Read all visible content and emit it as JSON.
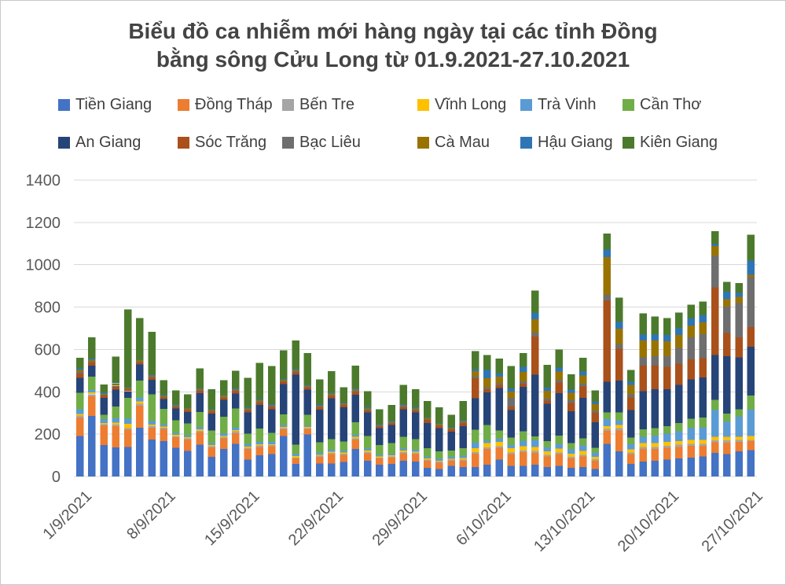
{
  "title": {
    "line1": "Biểu đồ ca nhiễm mới hàng ngày tại các tỉnh Đồng",
    "line2": "bằng sông Cửu Long từ 01.9.2021-27.10.2021"
  },
  "colors": {
    "gridline": "#d9d9d9",
    "axis_text": "#595959",
    "title_text": "#444444",
    "legend_text": "#404040",
    "background": "#ffffff"
  },
  "chart_data": {
    "type": "bar",
    "stacked": true,
    "title": "Biểu đồ ca nhiễm mới hàng ngày tại các tỉnh Đồng bằng sông Cửu Long từ 01.9.2021-27.10.2021",
    "legend_position": "top",
    "grid": "horizontal",
    "ylim": [
      0,
      1400
    ],
    "y_ticks": [
      0,
      200,
      400,
      600,
      800,
      1000,
      1200,
      1400
    ],
    "x_tick_every": 7,
    "x_tick_labels": [
      "1/9/2021",
      "8/9/2021",
      "15/9/2021",
      "22/9/2021",
      "29/9/2021",
      "6/10/2021",
      "13/10/2021",
      "20/10/2021",
      "27/10/2021"
    ],
    "categories": [
      "1/9/2021",
      "2/9/2021",
      "3/9/2021",
      "4/9/2021",
      "5/9/2021",
      "6/9/2021",
      "7/9/2021",
      "8/9/2021",
      "9/9/2021",
      "10/9/2021",
      "11/9/2021",
      "12/9/2021",
      "13/9/2021",
      "14/9/2021",
      "15/9/2021",
      "16/9/2021",
      "17/9/2021",
      "18/9/2021",
      "19/9/2021",
      "20/9/2021",
      "21/9/2021",
      "22/9/2021",
      "23/9/2021",
      "24/9/2021",
      "25/9/2021",
      "26/9/2021",
      "27/9/2021",
      "28/9/2021",
      "29/9/2021",
      "30/9/2021",
      "1/10/2021",
      "2/10/2021",
      "3/10/2021",
      "4/10/2021",
      "5/10/2021",
      "6/10/2021",
      "7/10/2021",
      "8/10/2021",
      "9/10/2021",
      "10/10/2021",
      "11/10/2021",
      "12/10/2021",
      "13/10/2021",
      "14/10/2021",
      "15/10/2021",
      "16/10/2021",
      "17/10/2021",
      "18/10/2021",
      "19/10/2021",
      "20/10/2021",
      "21/10/2021",
      "22/10/2021",
      "23/10/2021",
      "24/10/2021",
      "25/10/2021",
      "26/10/2021",
      "27/10/2021"
    ],
    "series": [
      {
        "name": "Tiền Giang",
        "color": "#4472C4",
        "values": [
          192,
          286,
          149,
          137,
          140,
          230,
          174,
          168,
          135,
          120,
          150,
          93,
          130,
          155,
          80,
          100,
          106,
          192,
          60,
          199,
          62,
          62,
          68,
          130,
          75,
          55,
          60,
          75,
          70,
          40,
          35,
          50,
          45,
          45,
          56,
          80,
          50,
          50,
          56,
          45,
          50,
          40,
          45,
          35,
          155,
          118,
          60,
          70,
          75,
          80,
          85,
          90,
          95,
          112,
          105,
          118,
          124
        ]
      },
      {
        "name": "Đồng Tháp",
        "color": "#ED7D31",
        "values": [
          87,
          93,
          93,
          100,
          81,
          105,
          56,
          56,
          50,
          55,
          60,
          45,
          50,
          50,
          50,
          40,
          37,
          31,
          25,
          25,
          31,
          43,
          35,
          45,
          35,
          30,
          30,
          35,
          35,
          35,
          30,
          25,
          30,
          62,
          74,
          55,
          55,
          65,
          56,
          50,
          55,
          45,
          50,
          40,
          60,
          100,
          45,
          60,
          55,
          55,
          55,
          55,
          50,
          50,
          55,
          45,
          43
        ]
      },
      {
        "name": "Bến Tre",
        "color": "#A5A5A5",
        "values": [
          9,
          10,
          5,
          8,
          8,
          8,
          8,
          6,
          5,
          5,
          6,
          5,
          6,
          8,
          6,
          6,
          5,
          5,
          5,
          5,
          5,
          6,
          5,
          6,
          6,
          5,
          5,
          6,
          6,
          5,
          5,
          4,
          5,
          8,
          8,
          8,
          8,
          8,
          8,
          8,
          8,
          8,
          8,
          6,
          10,
          10,
          8,
          10,
          10,
          10,
          10,
          10,
          10,
          8,
          10,
          10,
          5
        ]
      },
      {
        "name": "Vĩnh Long",
        "color": "#FFC000",
        "values": [
          8,
          8,
          6,
          10,
          19,
          12,
          8,
          6,
          6,
          5,
          6,
          5,
          6,
          6,
          6,
          6,
          5,
          6,
          6,
          5,
          5,
          6,
          5,
          6,
          6,
          5,
          5,
          6,
          6,
          5,
          5,
          5,
          8,
          19,
          19,
          20,
          20,
          20,
          19,
          15,
          18,
          15,
          18,
          12,
          12,
          15,
          15,
          18,
          18,
          18,
          18,
          18,
          18,
          18,
          18,
          15,
          19
        ]
      },
      {
        "name": "Trà Vinh",
        "color": "#5B9BD5",
        "values": [
          21,
          12,
          19,
          19,
          25,
          19,
          15,
          10,
          10,
          10,
          12,
          10,
          10,
          12,
          10,
          12,
          10,
          10,
          10,
          8,
          8,
          10,
          8,
          10,
          10,
          8,
          8,
          10,
          10,
          8,
          8,
          8,
          10,
          25,
          12,
          15,
          15,
          25,
          31,
          20,
          22,
          20,
          25,
          18,
          35,
          20,
          25,
          30,
          35,
          40,
          45,
          55,
          60,
          125,
          70,
          95,
          124
        ]
      },
      {
        "name": "Cần Thơ",
        "color": "#70AD47",
        "values": [
          78,
          62,
          19,
          56,
          99,
          80,
          128,
          74,
          60,
          55,
          70,
          60,
          80,
          90,
          50,
          62,
          43,
          50,
          45,
          50,
          50,
          50,
          45,
          60,
          60,
          45,
          50,
          55,
          50,
          40,
          35,
          30,
          35,
          62,
          74,
          40,
          35,
          45,
          19,
          30,
          40,
          30,
          35,
          25,
          30,
          40,
          30,
          35,
          35,
          35,
          40,
          45,
          45,
          50,
          40,
          35,
          68
        ]
      },
      {
        "name": "An Giang",
        "color": "#264478",
        "values": [
          71,
          53,
          81,
          81,
          30,
          75,
          68,
          45,
          55,
          55,
          90,
          80,
          80,
          70,
          100,
          112,
          112,
          143,
          330,
          118,
          155,
          192,
          160,
          130,
          110,
          80,
          85,
          130,
          125,
          120,
          110,
          90,
          105,
          149,
          155,
          200,
          130,
          210,
          292,
          175,
          200,
          150,
          190,
          120,
          145,
          150,
          130,
          180,
          185,
          175,
          180,
          185,
          190,
          210,
          270,
          245,
          230
        ]
      },
      {
        "name": "Sóc Trăng",
        "color": "#A9501B",
        "values": [
          21,
          15,
          10,
          12,
          8,
          10,
          10,
          8,
          8,
          8,
          10,
          8,
          10,
          12,
          10,
          12,
          10,
          10,
          12,
          10,
          10,
          12,
          10,
          12,
          10,
          8,
          8,
          10,
          10,
          15,
          12,
          10,
          12,
          95,
          15,
          15,
          15,
          15,
          180,
          15,
          50,
          40,
          55,
          45,
          385,
          150,
          60,
          120,
          110,
          105,
          100,
          95,
          90,
          320,
          110,
          95,
          93
        ]
      },
      {
        "name": "Bạc Liêu",
        "color": "#6E6E6E",
        "values": [
          6,
          5,
          5,
          5,
          4,
          4,
          4,
          3,
          3,
          3,
          4,
          3,
          4,
          4,
          4,
          4,
          4,
          4,
          4,
          4,
          4,
          4,
          4,
          5,
          4,
          3,
          3,
          4,
          4,
          3,
          3,
          3,
          4,
          8,
          8,
          8,
          43,
          12,
          19,
          10,
          12,
          12,
          12,
          10,
          25,
          20,
          15,
          40,
          45,
          50,
          75,
          105,
          115,
          150,
          125,
          160,
          236
        ]
      },
      {
        "name": "Cà Mau",
        "color": "#997300",
        "values": [
          10,
          8,
          5,
          8,
          5,
          6,
          6,
          5,
          5,
          5,
          6,
          5,
          6,
          6,
          6,
          6,
          5,
          6,
          6,
          5,
          5,
          6,
          5,
          8,
          6,
          5,
          5,
          6,
          6,
          5,
          5,
          4,
          8,
          25,
          43,
          30,
          30,
          43,
          62,
          37,
          40,
          35,
          40,
          30,
          180,
          75,
          45,
          80,
          75,
          70,
          60,
          55,
          55,
          45,
          35,
          30,
          10
        ]
      },
      {
        "name": "Hậu Giang",
        "color": "#2E75B6",
        "values": [
          7,
          5,
          5,
          5,
          3,
          3,
          3,
          3,
          3,
          3,
          4,
          3,
          3,
          4,
          4,
          4,
          4,
          4,
          4,
          4,
          4,
          4,
          4,
          5,
          4,
          3,
          3,
          4,
          4,
          3,
          3,
          3,
          5,
          8,
          40,
          15,
          15,
          25,
          31,
          15,
          20,
          15,
          18,
          12,
          35,
          32,
          15,
          28,
          28,
          30,
          32,
          34,
          34,
          10,
          35,
          20,
          68
        ]
      },
      {
        "name": "Kiên Giang",
        "color": "#4C7A2D",
        "values": [
          50,
          101,
          37,
          126,
          368,
          197,
          203,
          71,
          66,
          64,
          93,
          96,
          70,
          83,
          140,
          172,
          180,
          135,
          135,
          150,
          120,
          102,
          73,
          107,
          77,
          70,
          76,
          91,
          86,
          78,
          76,
          60,
          90,
          86,
          69,
          71,
          105,
          65,
          106,
          108,
          84,
          73,
          64,
          53,
          75,
          115,
          55,
          100,
          85,
          80,
          75,
          65,
          65,
          60,
          46,
          45,
          122
        ]
      }
    ]
  }
}
